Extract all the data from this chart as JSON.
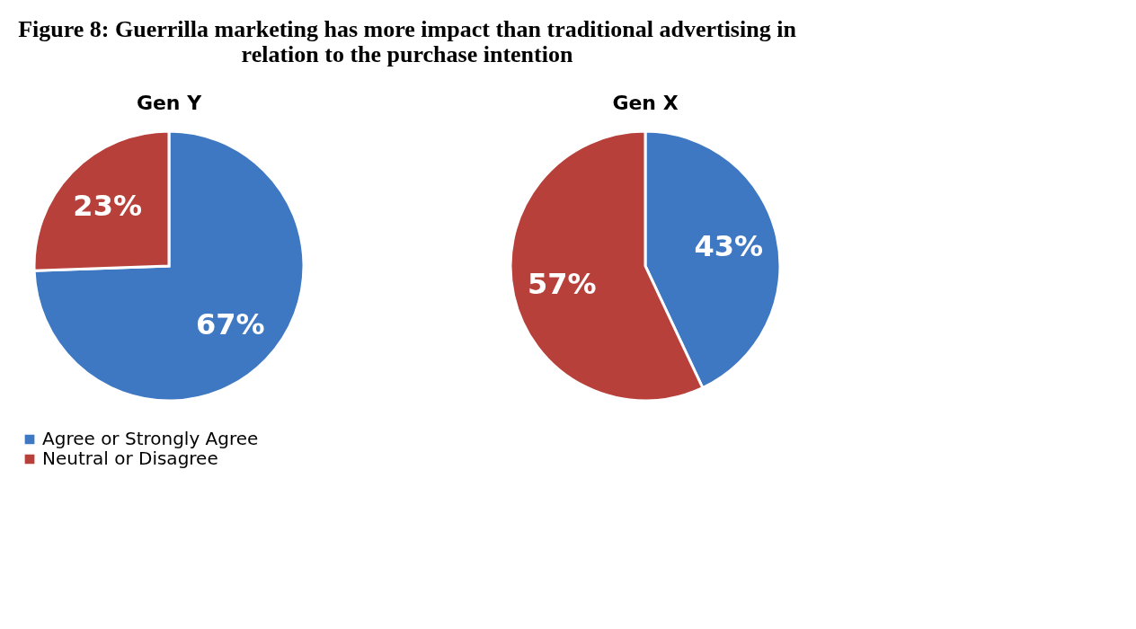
{
  "chart_data": [
    {
      "type": "pie",
      "title": "Gen Y",
      "annotations": [
        "Figure 8: Guerrilla marketing has more impact than traditional advertising in relation to the purchase intention"
      ],
      "categories": [
        "Agree or Strongly Agree",
        "Neutral or Disagree"
      ],
      "values": [
        67,
        23
      ],
      "colors": [
        "#3f78c2",
        "#b8403b"
      ],
      "value_labels": [
        "67%",
        "23%"
      ],
      "legend": "bottom left"
    },
    {
      "type": "pie",
      "title": "Gen X",
      "categories": [
        null,
        null
      ],
      "values": [
        43,
        57
      ],
      "colors": [
        "#3f78c2",
        "#b8403b"
      ],
      "value_labels": [
        "43%",
        "57%"
      ],
      "legend": false
    }
  ]
}
